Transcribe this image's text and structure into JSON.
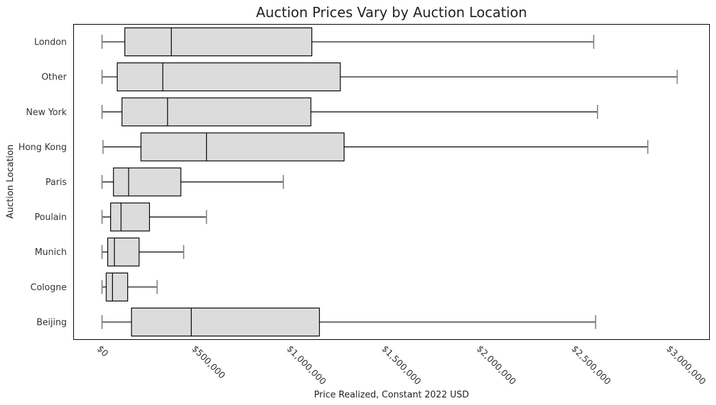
{
  "chart_data": {
    "type": "boxplot",
    "orientation": "horizontal",
    "title": "Auction Prices Vary by Auction Location",
    "xlabel": "Price Realized, Constant 2022 USD",
    "ylabel": "Auction Location",
    "xlim": [
      -150000,
      3200000
    ],
    "x_ticks": [
      0,
      500000,
      1000000,
      1500000,
      2000000,
      2500000,
      3000000
    ],
    "x_tick_labels": [
      "$0",
      "$500,000",
      "$1,000,000",
      "$1,500,000",
      "$2,000,000",
      "$2,500,000",
      "$3,000,000"
    ],
    "grid": false,
    "box_color": "#dcdcdc",
    "edge_color": "#000000",
    "whisker_cap_color": "#808080",
    "series": [
      {
        "name": "London",
        "whislo": 0,
        "q1": 120000,
        "median": 365000,
        "q3": 1105000,
        "whishi": 2590000
      },
      {
        "name": "Other",
        "whislo": 0,
        "q1": 80000,
        "median": 320000,
        "q3": 1255000,
        "whishi": 3030000
      },
      {
        "name": "New York",
        "whislo": 0,
        "q1": 105000,
        "median": 345000,
        "q3": 1100000,
        "whishi": 2610000
      },
      {
        "name": "Hong Kong",
        "whislo": 5000,
        "q1": 205000,
        "median": 550000,
        "q3": 1275000,
        "whishi": 2875000
      },
      {
        "name": "Paris",
        "whislo": 0,
        "q1": 60000,
        "median": 140000,
        "q3": 415000,
        "whishi": 955000
      },
      {
        "name": "Poulain",
        "whislo": 0,
        "q1": 45000,
        "median": 100000,
        "q3": 250000,
        "whishi": 550000
      },
      {
        "name": "Munich",
        "whislo": 0,
        "q1": 30000,
        "median": 65000,
        "q3": 195000,
        "whishi": 430000
      },
      {
        "name": "Cologne",
        "whislo": 0,
        "q1": 22000,
        "median": 55000,
        "q3": 135000,
        "whishi": 290000
      },
      {
        "name": "Beijing",
        "whislo": 0,
        "q1": 155000,
        "median": 470000,
        "q3": 1145000,
        "whishi": 2600000
      }
    ]
  }
}
